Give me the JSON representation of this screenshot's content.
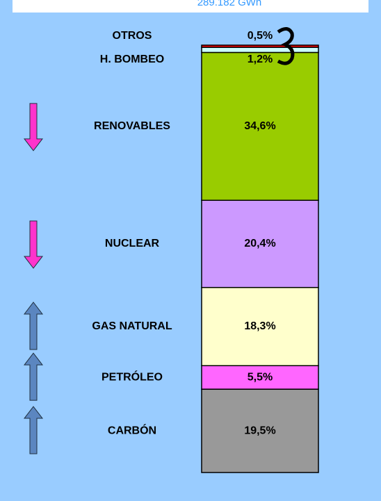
{
  "chart_data": {
    "type": "stacked_bar",
    "subtitle": "289.182 GWh",
    "series": [
      {
        "name": "CARBÓN",
        "color": "#999999",
        "values": [
          19.5
        ],
        "value_labels": [
          "19,5%"
        ]
      },
      {
        "name": "PETRÓLEO",
        "color": "#ff66ff",
        "values": [
          5.5
        ],
        "value_labels": [
          "5,5%"
        ]
      },
      {
        "name": "GAS NATURAL",
        "color": "#ffffcc",
        "values": [
          18.3
        ],
        "value_labels": [
          "18,3%"
        ]
      },
      {
        "name": "NUCLEAR",
        "color": "#cc99ff",
        "values": [
          20.4
        ],
        "value_labels": [
          "20,4%"
        ]
      },
      {
        "name": "RENOVABLES",
        "color": "#99cc00",
        "values": [
          34.6
        ],
        "value_labels": [
          "34,6%"
        ]
      },
      {
        "name": "H. BOMBEO",
        "color": "#ccffff",
        "values": [
          1.2
        ],
        "value_labels": [
          "1,2%"
        ]
      },
      {
        "name": "OTROS",
        "color": "#ff0000",
        "values": [
          0.5
        ],
        "value_labels": [
          "0,5%"
        ]
      }
    ]
  }
}
